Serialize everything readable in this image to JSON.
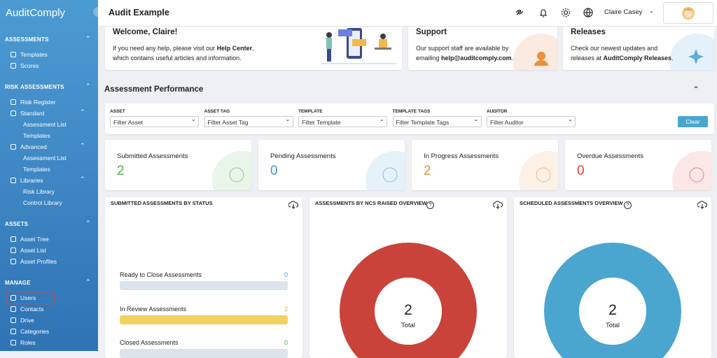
{
  "sidebar": {
    "brand": "AuditComply",
    "sections": [
      {
        "title": "ASSESSMENTS",
        "items": [
          {
            "label": "Templates",
            "kind": "item"
          },
          {
            "label": "Scores",
            "kind": "item"
          }
        ]
      },
      {
        "title": "RISK ASSESSMENTS",
        "items": [
          {
            "label": "Risk Register",
            "kind": "item"
          },
          {
            "label": "Standard",
            "kind": "group"
          },
          {
            "label": "Assessment List",
            "kind": "sub"
          },
          {
            "label": "Templates",
            "kind": "sub"
          },
          {
            "label": "Advanced",
            "kind": "group"
          },
          {
            "label": "Assessment List",
            "kind": "sub"
          },
          {
            "label": "Templates",
            "kind": "sub"
          },
          {
            "label": "Libraries",
            "kind": "group"
          },
          {
            "label": "Risk Library",
            "kind": "sub"
          },
          {
            "label": "Control Library",
            "kind": "sub"
          }
        ]
      },
      {
        "title": "ASSETS",
        "items": [
          {
            "label": "Asset Tree",
            "kind": "item"
          },
          {
            "label": "Asset List",
            "kind": "item"
          },
          {
            "label": "Asset Profiles",
            "kind": "item"
          }
        ]
      },
      {
        "title": "MANAGE",
        "items": [
          {
            "label": "Users",
            "kind": "item",
            "highlighted": true
          },
          {
            "label": "Contacts",
            "kind": "item"
          },
          {
            "label": "Drive",
            "kind": "item"
          },
          {
            "label": "Categories",
            "kind": "item"
          },
          {
            "label": "Roles",
            "kind": "item"
          }
        ]
      }
    ]
  },
  "header": {
    "title": "Audit Example",
    "user": "Claire Casey"
  },
  "cards": {
    "welcome": {
      "title": "Welcome, Claire!",
      "text": "If you need any help, please visit our ",
      "link": "Help Center",
      "text_end": ", which contains useful articles and information."
    },
    "support": {
      "title": "Support",
      "text": "Our support staff are available by emailing ",
      "link": "help@auditcomply.com",
      "text_end": "."
    },
    "releases": {
      "title": "Releases",
      "text": "Check our newest updates and releases at ",
      "link": "AuditComply Releases",
      "text_end": "."
    }
  },
  "performance": {
    "title": "Assessment Performance",
    "filters": [
      {
        "label": "ASSET",
        "placeholder": "Filter Asset"
      },
      {
        "label": "ASSET TAG",
        "placeholder": "Filter Asset Tag"
      },
      {
        "label": "TEMPLATE",
        "placeholder": "Filter Template"
      },
      {
        "label": "TEMPLATE TAGS",
        "placeholder": "Filter Template Tags"
      },
      {
        "label": "AUDITOR",
        "placeholder": "Filter Auditor"
      }
    ],
    "clear": "Clear",
    "stats": [
      {
        "label": "Submitted Assessments",
        "value": "2",
        "color": "#4caf50"
      },
      {
        "label": "Pending Assessments",
        "value": "0",
        "color": "#3d9ad1"
      },
      {
        "label": "In Progress Assessments",
        "value": "2",
        "color": "#e8923a"
      },
      {
        "label": "Overdue Assessments",
        "value": "0",
        "color": "#d9453d"
      }
    ]
  },
  "panels": {
    "status": {
      "title": "SUBMITTED ASSESSMENTS BY STATUS",
      "rows": [
        {
          "label": "Ready to Close Assessments",
          "value": 0,
          "color": "#3d9ad1"
        },
        {
          "label": "In Review Assessments",
          "value": 2,
          "color": "#e8b53a"
        },
        {
          "label": "Closed Assessments",
          "value": 0,
          "color": "#4caf50"
        }
      ]
    },
    "ncs": {
      "title": "ASSESSMENTS BY NCS RAISED OVERVIEW",
      "total": 2,
      "total_label": "Total",
      "color": "#c9433b"
    },
    "scheduled": {
      "title": "SCHEDULED ASSESSMENTS OVERVIEW",
      "total": 2,
      "total_label": "Total",
      "color": "#4aa6cf"
    }
  }
}
